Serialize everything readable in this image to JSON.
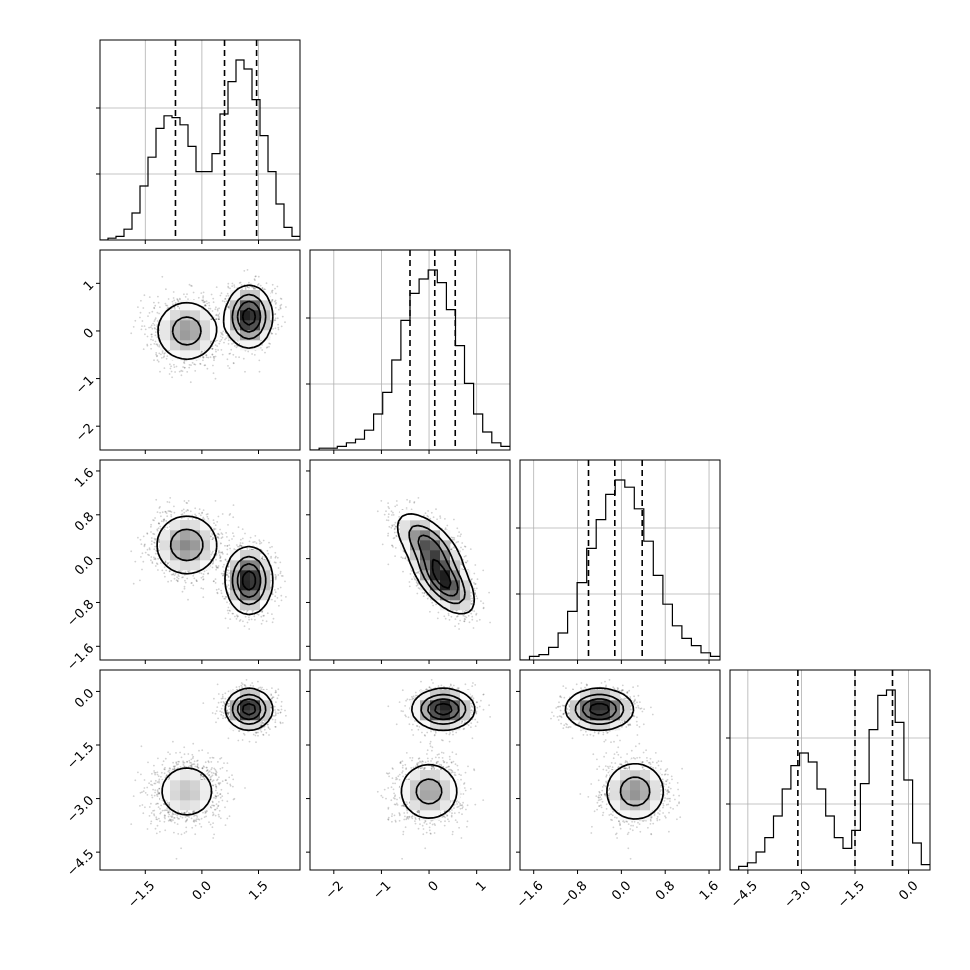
{
  "chart_data": {
    "type": "corner",
    "grid": true,
    "parameters": [
      {
        "range": [
          -2.7,
          2.6
        ],
        "ticks": [
          -1.5,
          0.0,
          1.5
        ],
        "tick_labels": [
          "−1.5",
          "0.0",
          "1.5"
        ],
        "quantiles": [
          -0.7,
          0.6,
          1.45
        ]
      },
      {
        "range": [
          -2.5,
          1.7
        ],
        "ticks": [
          -2,
          -1,
          0,
          1
        ],
        "tick_labels": [
          "−2",
          "−1",
          "0",
          "1"
        ],
        "quantiles": [
          -0.4,
          0.12,
          0.55
        ]
      },
      {
        "range": [
          -1.85,
          1.8
        ],
        "ticks": [
          -1.6,
          -0.8,
          0.0,
          0.8,
          1.6
        ],
        "tick_labels": [
          "−1.6",
          "−0.8",
          "0.0",
          "0.8",
          "1.6"
        ],
        "quantiles": [
          -0.6,
          -0.12,
          0.38
        ]
      },
      {
        "range": [
          -5.0,
          0.6
        ],
        "ticks": [
          -4.5,
          -3.0,
          -1.5,
          0.0
        ],
        "tick_labels": [
          "−4.5",
          "−3.0",
          "−1.5",
          "0.0"
        ],
        "quantiles": [
          -3.1,
          -1.5,
          -0.45
        ]
      }
    ],
    "histograms": [
      [
        0.0,
        0.01,
        0.02,
        0.06,
        0.15,
        0.3,
        0.46,
        0.62,
        0.69,
        0.68,
        0.64,
        0.52,
        0.38,
        0.38,
        0.48,
        0.7,
        0.88,
        1.0,
        0.95,
        0.78,
        0.58,
        0.38,
        0.2,
        0.07,
        0.02
      ],
      [
        0.0,
        0.01,
        0.01,
        0.02,
        0.04,
        0.06,
        0.11,
        0.2,
        0.32,
        0.5,
        0.72,
        0.87,
        0.95,
        1.0,
        0.93,
        0.78,
        0.58,
        0.37,
        0.2,
        0.1,
        0.04,
        0.02
      ],
      [
        0.0,
        0.02,
        0.03,
        0.07,
        0.15,
        0.27,
        0.43,
        0.62,
        0.78,
        0.92,
        1.0,
        0.96,
        0.84,
        0.66,
        0.47,
        0.31,
        0.19,
        0.12,
        0.08,
        0.04,
        0.02
      ],
      [
        0.0,
        0.02,
        0.04,
        0.1,
        0.18,
        0.3,
        0.45,
        0.58,
        0.65,
        0.6,
        0.45,
        0.3,
        0.18,
        0.12,
        0.22,
        0.48,
        0.78,
        0.97,
        1.0,
        0.82,
        0.5,
        0.15,
        0.03
      ]
    ],
    "modes": [
      {
        "weight": 0.45,
        "mean": [
          -0.4,
          0.0,
          0.25,
          -2.8
        ],
        "sd": [
          0.45,
          0.35,
          0.3,
          0.45
        ],
        "corr": [
          [
            1,
            0,
            0,
            0
          ],
          [
            0,
            1,
            -0.6,
            0
          ],
          [
            0,
            -0.6,
            1,
            0
          ],
          [
            0,
            0,
            0,
            1
          ]
        ]
      },
      {
        "weight": 0.55,
        "mean": [
          1.25,
          0.3,
          -0.4,
          -0.5
        ],
        "sd": [
          0.3,
          0.32,
          0.3,
          0.28
        ],
        "corr": [
          [
            1,
            0,
            0,
            0
          ],
          [
            0,
            1,
            -0.6,
            0
          ],
          [
            0,
            -0.6,
            1,
            0
          ],
          [
            0,
            0,
            0,
            1
          ]
        ]
      }
    ]
  }
}
